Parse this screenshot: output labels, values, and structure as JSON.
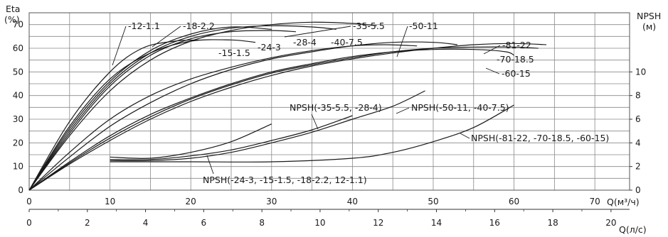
{
  "chart_data": {
    "type": "line",
    "y_left": {
      "label_line1": "Eta",
      "label_line2": "(%)",
      "ticks": [
        "0",
        "10",
        "20",
        "30",
        "40",
        "50",
        "60",
        "70"
      ],
      "range": [
        0,
        75
      ]
    },
    "y_right": {
      "label_line1": "NPSH",
      "label_line2": "(м)",
      "ticks": [
        "0",
        "2",
        "4",
        "6",
        "8",
        "10"
      ],
      "range": [
        0,
        15
      ]
    },
    "x_top": {
      "label": "Q(м³/ч)",
      "ticks": [
        "0",
        "10",
        "20",
        "30",
        "40",
        "50",
        "60",
        "70"
      ],
      "range": [
        0,
        74.3
      ]
    },
    "x_bottom": {
      "label": "Q(л/с)",
      "ticks": [
        "0",
        "2",
        "4",
        "6",
        "8",
        "10",
        "12",
        "14",
        "16",
        "18",
        "20"
      ]
    },
    "grid": true,
    "efficiency_curves": [
      {
        "name": "-12-1.1",
        "points": [
          [
            0,
            0
          ],
          [
            5,
            29
          ],
          [
            10,
            50
          ],
          [
            14,
            60
          ],
          [
            18,
            63
          ],
          [
            21,
            63.5
          ]
        ]
      },
      {
        "name": "-15-1.5",
        "points": [
          [
            0,
            0
          ],
          [
            5,
            27
          ],
          [
            10,
            47
          ],
          [
            15,
            58
          ],
          [
            20,
            63
          ],
          [
            25,
            63.5
          ],
          [
            28,
            62.5
          ]
        ]
      },
      {
        "name": "-18-2.2",
        "points": [
          [
            0,
            0
          ],
          [
            5,
            26
          ],
          [
            10,
            46
          ],
          [
            15,
            59
          ],
          [
            20,
            66
          ],
          [
            25,
            69
          ],
          [
            30,
            68
          ]
        ]
      },
      {
        "name": "-24-3",
        "points": [
          [
            0,
            0
          ],
          [
            5,
            24
          ],
          [
            10,
            44
          ],
          [
            15,
            57
          ],
          [
            20,
            64
          ],
          [
            25,
            67
          ],
          [
            30,
            67.5
          ],
          [
            33,
            67
          ]
        ]
      },
      {
        "name": "-28-4",
        "points": [
          [
            0,
            0
          ],
          [
            5,
            25
          ],
          [
            10,
            45
          ],
          [
            15,
            58
          ],
          [
            20,
            65
          ],
          [
            25,
            68.5
          ],
          [
            30,
            69.5
          ],
          [
            35,
            69
          ],
          [
            38,
            68
          ]
        ]
      },
      {
        "name": "-35-5.5",
        "points": [
          [
            0,
            0
          ],
          [
            5,
            23
          ],
          [
            10,
            42
          ],
          [
            15,
            55
          ],
          [
            20,
            63
          ],
          [
            25,
            67.5
          ],
          [
            30,
            70
          ],
          [
            35,
            71
          ],
          [
            40,
            70.5
          ],
          [
            43,
            69.5
          ]
        ]
      },
      {
        "name": "-40-7.5",
        "points": [
          [
            0,
            0
          ],
          [
            5,
            16
          ],
          [
            10,
            30
          ],
          [
            15,
            40
          ],
          [
            20,
            47
          ],
          [
            25,
            52
          ],
          [
            30,
            56
          ],
          [
            35,
            59
          ],
          [
            40,
            61
          ],
          [
            44,
            61.5
          ],
          [
            48,
            61
          ]
        ]
      },
      {
        "name": "-50-11",
        "points": [
          [
            0,
            0
          ],
          [
            5,
            14
          ],
          [
            10,
            27
          ],
          [
            15,
            37
          ],
          [
            20,
            45
          ],
          [
            25,
            51
          ],
          [
            30,
            55.5
          ],
          [
            35,
            58.5
          ],
          [
            40,
            61
          ],
          [
            45,
            62.5
          ],
          [
            50,
            62.5
          ],
          [
            53,
            61.5
          ]
        ]
      },
      {
        "name": "-60-15",
        "points": [
          [
            0,
            0
          ],
          [
            5,
            12
          ],
          [
            10,
            23
          ],
          [
            15,
            32
          ],
          [
            20,
            39
          ],
          [
            25,
            45
          ],
          [
            30,
            50
          ],
          [
            35,
            53.5
          ],
          [
            40,
            56.5
          ],
          [
            45,
            58.5
          ],
          [
            50,
            59.5
          ],
          [
            55,
            59.5
          ],
          [
            59,
            58.5
          ],
          [
            60,
            57
          ]
        ]
      },
      {
        "name": "-70-18.5",
        "points": [
          [
            0,
            0
          ],
          [
            5,
            11.5
          ],
          [
            10,
            22
          ],
          [
            15,
            31
          ],
          [
            20,
            38.5
          ],
          [
            25,
            44.5
          ],
          [
            30,
            49.5
          ],
          [
            35,
            53
          ],
          [
            40,
            56
          ],
          [
            45,
            58.5
          ],
          [
            50,
            60
          ],
          [
            55,
            60.5
          ],
          [
            60,
            60.5
          ],
          [
            63,
            60
          ]
        ]
      },
      {
        "name": "-81-22",
        "points": [
          [
            0,
            0
          ],
          [
            5,
            11
          ],
          [
            10,
            21
          ],
          [
            15,
            30
          ],
          [
            20,
            37.5
          ],
          [
            25,
            43.5
          ],
          [
            30,
            48.5
          ],
          [
            35,
            52.5
          ],
          [
            40,
            55.5
          ],
          [
            45,
            58
          ],
          [
            50,
            60
          ],
          [
            55,
            61.5
          ],
          [
            60,
            62
          ],
          [
            64,
            61.5
          ]
        ]
      }
    ],
    "npsh_curves": [
      {
        "name": "NPSH(-24-3, -15-1.5, -18-2.2, 12-1.1)",
        "points": [
          [
            10,
            2.8
          ],
          [
            15,
            2.7
          ],
          [
            20,
            3.2
          ],
          [
            25,
            4.1
          ],
          [
            30,
            5.6
          ]
        ]
      },
      {
        "name": "NPSH(-35-5.5, -28-4)",
        "points": [
          [
            10,
            2.6
          ],
          [
            15,
            2.6
          ],
          [
            20,
            2.9
          ],
          [
            25,
            3.4
          ],
          [
            30,
            4.2
          ],
          [
            35,
            5.1
          ],
          [
            40,
            6.3
          ]
        ]
      },
      {
        "name": "NPSH(-50-11, -40-7.5)",
        "points": [
          [
            10,
            2.5
          ],
          [
            15,
            2.5
          ],
          [
            20,
            2.7
          ],
          [
            25,
            3.2
          ],
          [
            30,
            4.0
          ],
          [
            35,
            4.9
          ],
          [
            40,
            6.0
          ],
          [
            45,
            7.1
          ],
          [
            49,
            8.4
          ]
        ]
      },
      {
        "name": "NPSH(-81-22, -70-18.5, -60-15)",
        "points": [
          [
            10,
            2.4
          ],
          [
            20,
            2.4
          ],
          [
            30,
            2.4
          ],
          [
            40,
            2.7
          ],
          [
            45,
            3.2
          ],
          [
            50,
            4.1
          ],
          [
            55,
            5.3
          ],
          [
            60,
            7.2
          ]
        ]
      }
    ],
    "labels": {
      "eff": [
        "-12-1.1",
        "-18-2.2",
        "-15-1.5",
        "-24-3",
        "-28-4",
        "-40-7.5",
        "-35-5.5",
        "-50-11",
        "-81-22",
        "-70-18.5",
        "-60-15"
      ],
      "npsh": [
        "NPSH(-35-5.5, -28-4)",
        "NPSH(-50-11, -40-7.5)",
        "NPSH(-81-22, -70-18.5, -60-15)",
        "NPSH(-24-3, -15-1.5, -18-2.2, 12-1.1)"
      ]
    }
  }
}
